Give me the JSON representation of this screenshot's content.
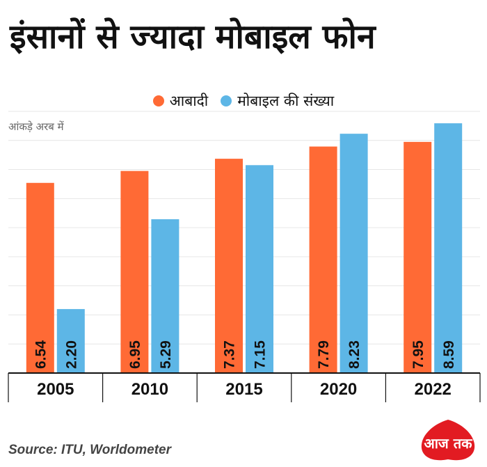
{
  "title": "इंसानों से ज्यादा मोबाइल फोन",
  "unit_note": "आंकड़े अरब में",
  "source": "Source: ITU, Worldometer",
  "logo_text": "आज तक",
  "colors": {
    "population": "#ff6a35",
    "mobile": "#5db6e6",
    "logo_red": "#e21b22"
  },
  "chart_data": {
    "type": "bar",
    "categories": [
      "2005",
      "2010",
      "2015",
      "2020",
      "2022"
    ],
    "series": [
      {
        "name": "आबादी",
        "values": [
          6.54,
          6.95,
          7.37,
          7.79,
          7.95
        ],
        "labels": [
          "6.54",
          "6.95",
          "7.37",
          "7.79",
          "7.95"
        ],
        "color": "#ff6a35"
      },
      {
        "name": "मोबाइल की संख्या",
        "values": [
          2.2,
          5.29,
          7.15,
          8.23,
          8.59
        ],
        "labels": [
          "2.20",
          "5.29",
          "7.15",
          "8.23",
          "8.59"
        ],
        "color": "#5db6e6"
      }
    ],
    "ylim": [
      0,
      9
    ],
    "grid": true,
    "legend": "top-center"
  }
}
